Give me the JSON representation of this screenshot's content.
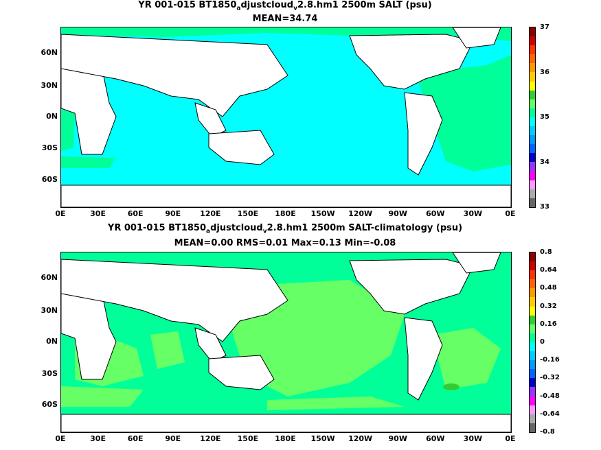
{
  "panels": [
    {
      "title_parts": [
        "YR 001-015 BT1850",
        "a",
        "djustcloud",
        "v",
        "2.8.hm1 2500m SALT (psu)"
      ],
      "stats": "MEAN=34.74",
      "colorbar_labels": [
        "37",
        "36",
        "35",
        "34",
        "33"
      ],
      "colorbar_colors": [
        "#8b0000",
        "#cc0000",
        "#ff3300",
        "#ff6600",
        "#ff9900",
        "#ffcc00",
        "#ffff00",
        "#33cc33",
        "#66ff66",
        "#00ff99",
        "#00ffff",
        "#00ccff",
        "#0099ff",
        "#0066ff",
        "#0000cc",
        "#9933ff",
        "#ff00ff",
        "#ff99ff",
        "#aaaaaa",
        "#666666"
      ]
    },
    {
      "title_parts": [
        "YR 001-015 BT1850",
        "a",
        "djustcloud",
        "v",
        "2.8.hm1 2500m SALT-climatology (psu)"
      ],
      "stats": "MEAN=0.00   RMS=0.01   Max=0.13   Min=-0.08",
      "colorbar_labels": [
        "0.8",
        "0.64",
        "0.48",
        "0.32",
        "0.16",
        "0",
        "-0.16",
        "-0.32",
        "-0.48",
        "-0.64",
        "-0.8"
      ],
      "colorbar_colors": [
        "#8b0000",
        "#cc0000",
        "#ff3300",
        "#ff6600",
        "#ff9900",
        "#ffcc00",
        "#ffff00",
        "#33cc33",
        "#66ff66",
        "#00ff99",
        "#00ffff",
        "#00ccff",
        "#0099ff",
        "#0066ff",
        "#0000cc",
        "#9933ff",
        "#ff00ff",
        "#ff99ff",
        "#aaaaaa",
        "#666666"
      ]
    }
  ],
  "axes": {
    "lat_labels": [
      "60N",
      "30N",
      "0N",
      "30S",
      "60S"
    ],
    "lon_labels": [
      "0E",
      "30E",
      "60E",
      "90E",
      "120E",
      "150E",
      "180E",
      "150W",
      "120W",
      "90W",
      "60W",
      "30W",
      "0E"
    ]
  },
  "colors": {
    "land": "#ffffff",
    "top_ocean_main": "#00ffff",
    "top_ocean_atlantic": "#00ff99",
    "bottom_ocean_main": "#00ff99",
    "bottom_ocean_positive": "#66ff66",
    "bottom_ocean_hot": "#33cc33"
  }
}
